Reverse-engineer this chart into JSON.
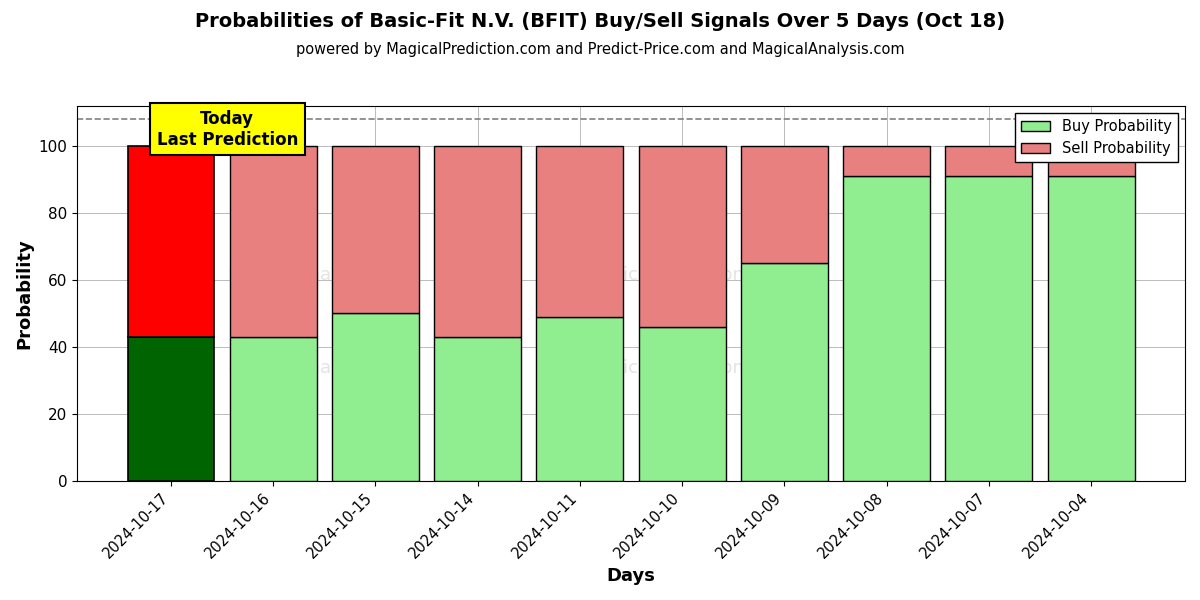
{
  "title": "Probabilities of Basic-Fit N.V. (BFIT) Buy/Sell Signals Over 5 Days (Oct 18)",
  "subtitle": "powered by MagicalPrediction.com and Predict-Price.com and MagicalAnalysis.com",
  "xlabel": "Days",
  "ylabel": "Probability",
  "dates": [
    "2024-10-17",
    "2024-10-16",
    "2024-10-15",
    "2024-10-14",
    "2024-10-11",
    "2024-10-10",
    "2024-10-09",
    "2024-10-08",
    "2024-10-07",
    "2024-10-04"
  ],
  "buy_values": [
    43,
    43,
    50,
    43,
    49,
    46,
    65,
    91,
    91,
    91
  ],
  "sell_values": [
    57,
    57,
    50,
    57,
    51,
    54,
    35,
    9,
    9,
    9
  ],
  "today_buy_color": "#006400",
  "today_sell_color": "#ff0000",
  "buy_color": "#90EE90",
  "sell_color": "#E88080",
  "today_box_color": "#ffff00",
  "today_box_text": "Today\nLast Prediction",
  "ylim": [
    0,
    112
  ],
  "dashed_line_y": 108,
  "legend_buy_label": "Buy Probability",
  "legend_sell_label": "Sell Probability",
  "bg_color": "#ffffff",
  "grid_color": "#bbbbbb"
}
